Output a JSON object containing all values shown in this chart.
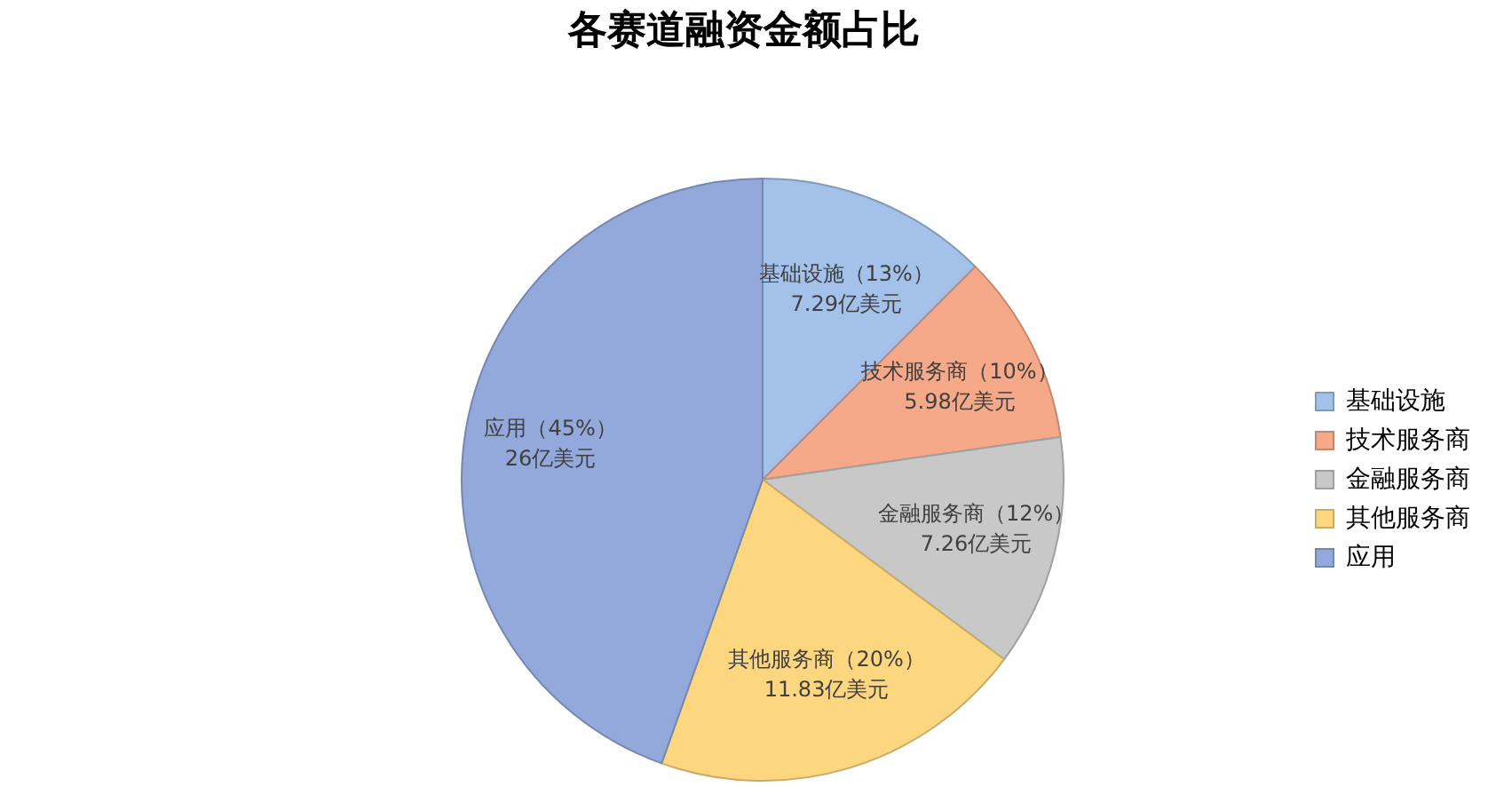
{
  "chart_data": {
    "type": "pie",
    "title": "各赛道融资金额占比",
    "categories": [
      "基础设施",
      "技术服务商",
      "金融服务商",
      "其他服务商",
      "应用"
    ],
    "values": [
      7.29,
      5.98,
      7.26,
      11.83,
      26
    ],
    "colors": [
      "#a3c1e9",
      "#f6a989",
      "#c8c8c8",
      "#fdd680",
      "#93a9dc"
    ],
    "value_labels": [
      "基础设施（13%）\n7.29亿美元",
      "技术服务商（10%）\n5.98亿美元",
      "金融服务商（12%）\n7.26亿美元",
      "其他服务商（20%）\n11.83亿美元",
      "应用（45%）\n26亿美元"
    ],
    "legend": "right"
  }
}
